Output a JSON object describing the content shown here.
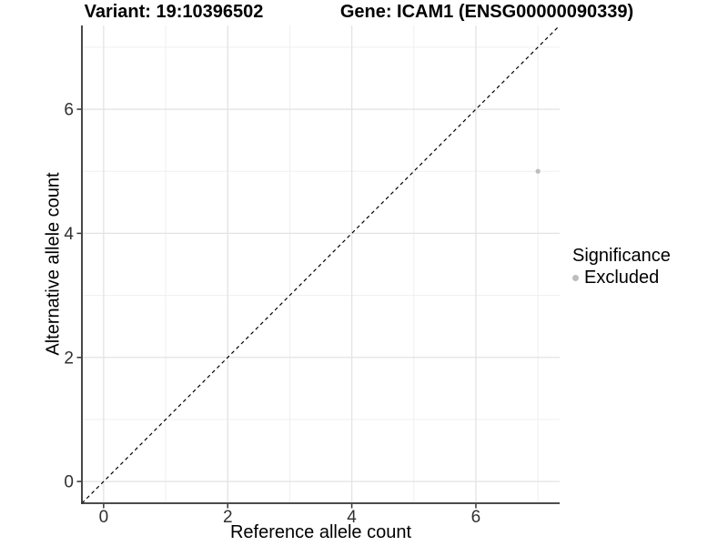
{
  "titles": {
    "variant": "Variant: 19:10396502",
    "gene": "Gene: ICAM1 (ENSG00000090339)"
  },
  "axes": {
    "x_label": "Reference allele count",
    "y_label": "Alternative allele count"
  },
  "legend": {
    "title": "Significance",
    "items": [
      {
        "label": "Excluded",
        "color": "#bdbdbd"
      }
    ]
  },
  "colors": {
    "background": "#ffffff",
    "axis_line": "#333333",
    "tick_label": "#303030",
    "grid_major": "#e3e3e3",
    "grid_minor": "#efefef",
    "identity_line": "#000000",
    "point": "#bdbdbd"
  },
  "chart_data": {
    "type": "scatter",
    "title": "Variant: 19:10396502  |  Gene: ICAM1 (ENSG00000090339)",
    "xlabel": "Reference allele count",
    "ylabel": "Alternative allele count",
    "xlim": [
      -0.35,
      7.35
    ],
    "ylim": [
      -0.35,
      7.35
    ],
    "xticks": [
      0,
      2,
      4,
      6
    ],
    "yticks": [
      0,
      2,
      4,
      6
    ],
    "xticks_minor": [
      1,
      3,
      5,
      7
    ],
    "yticks_minor": [
      1,
      3,
      5,
      7
    ],
    "grid": true,
    "legend_position": "right",
    "series": [
      {
        "name": "Excluded",
        "color": "#bdbdbd",
        "points": [
          {
            "x": 7,
            "y": 5
          }
        ]
      }
    ],
    "reference_line": {
      "type": "identity y=x",
      "style": "dashed",
      "color": "#000000"
    }
  }
}
